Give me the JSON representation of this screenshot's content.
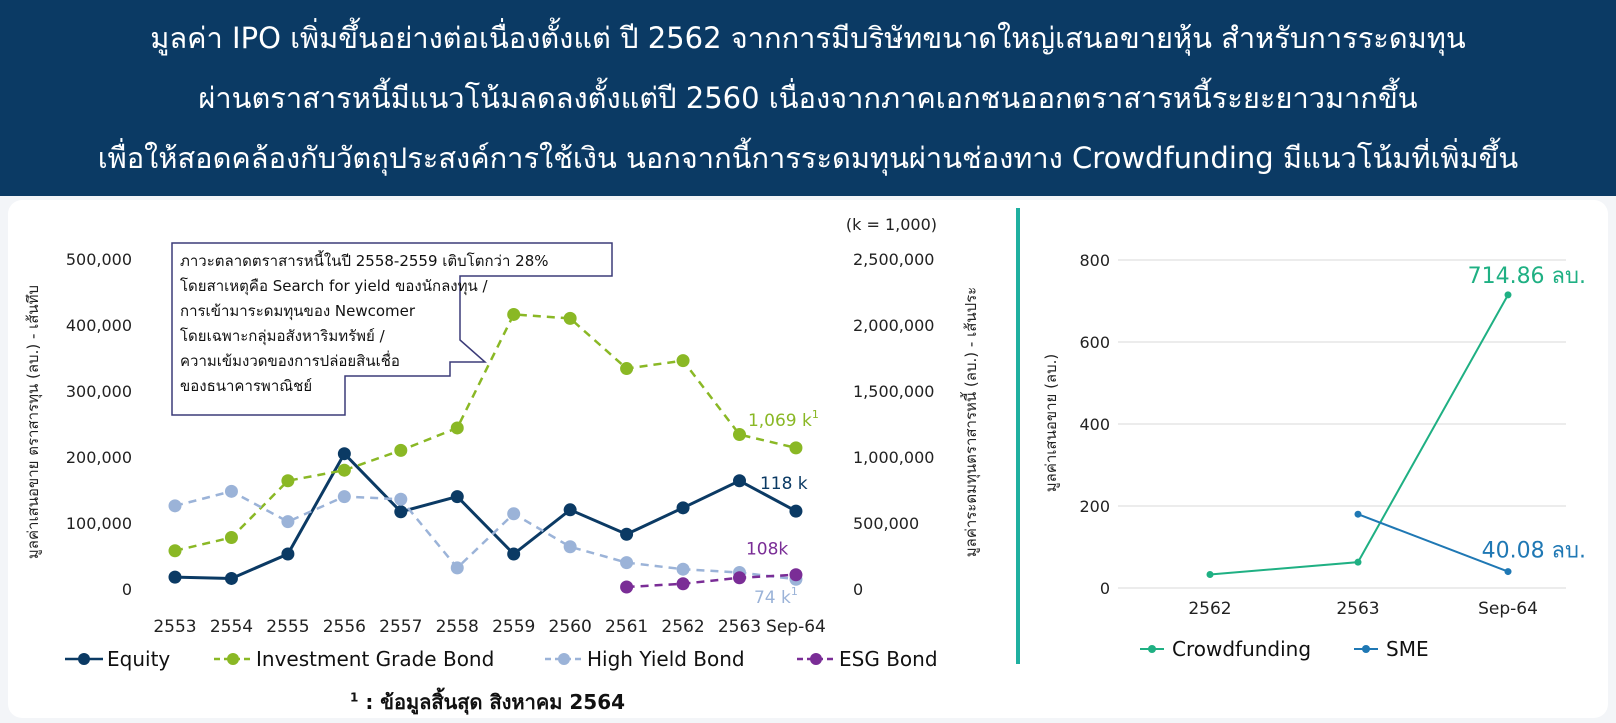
{
  "header": {
    "lines": [
      "มูลค่า IPO เพิ่มขึ้นอย่างต่อเนื่องตั้งแต่ ปี 2562 จากการมีบริษัทขนาดใหญ่เสนอขายหุ้น สำหรับการระดมทุน",
      "ผ่านตราสารหนี้มีแนวโน้มลดลงตั้งแต่ปี 2560 เนื่องจากภาคเอกชนออกตราสารหนี้ระยะยาวมากขึ้น",
      "เพื่อให้สอดคล้องกับวัตถุประสงค์การใช้เงิน นอกจากนี้การระดมทุนผ่านช่องทาง Crowdfunding มีแนวโน้มที่เพิ่มขึ้น"
    ]
  },
  "footnote": {
    "marker": "1",
    "text": " : ข้อมูลสิ้นสุด สิงหาคม 2564"
  },
  "chart_data": [
    {
      "type": "line",
      "ylabel": "มูลค่าเสนอขาย ตราสารทุน (ลบ.) - เส้นทึบ",
      "y2label": "มูลค่าระดมทุนตราสารหนี้ (ลบ.) - เส้นประ",
      "units_note": "(k = 1,000)",
      "ylim": [
        0,
        500000
      ],
      "y2lim": [
        0,
        2500000
      ],
      "yticks": [
        "0",
        "100,000",
        "200,000",
        "300,000",
        "400,000",
        "500,000"
      ],
      "y2ticks": [
        "",
        "500,000",
        "1,000,000",
        "1,500,000",
        "2,000,000",
        "2,500,000"
      ],
      "grid": false,
      "legend_position": "bottom",
      "categories": [
        "2553",
        "2554",
        "2555",
        "2556",
        "2557",
        "2558",
        "2559",
        "2560",
        "2561",
        "2562",
        "2563",
        "Sep-64"
      ],
      "series": [
        {
          "name": "Equity",
          "axis": "left",
          "style": "solid",
          "color": "#0b3a64",
          "values": [
            18000,
            16000,
            53000,
            205000,
            117000,
            140000,
            53000,
            120000,
            83000,
            123000,
            164000,
            118000
          ]
        },
        {
          "name": "Investment Grade Bond",
          "axis": "right",
          "style": "dashed",
          "color": "#8ab825",
          "values": [
            290000,
            390000,
            820000,
            900000,
            1050000,
            1220000,
            2080000,
            2050000,
            1670000,
            1730000,
            1170000,
            1069000
          ]
        },
        {
          "name": "High Yield Bond",
          "axis": "right",
          "style": "dashed",
          "color": "#9bb3d8",
          "values": [
            630000,
            740000,
            510000,
            700000,
            680000,
            160000,
            570000,
            320000,
            200000,
            150000,
            125000,
            74000
          ]
        },
        {
          "name": "ESG Bond",
          "axis": "right",
          "style": "dashed",
          "color": "#7a2d96",
          "values": [
            null,
            null,
            null,
            null,
            null,
            null,
            null,
            null,
            15000,
            40000,
            85000,
            108000
          ]
        }
      ],
      "annotation": {
        "lines": [
          "ภาวะตลาดตราสารหนี้ในปี 2558-2559 เติบโตกว่า 28%",
          "โดยสาเหตุคือ Search for yield ของนักลงทุน /",
          "การเข้ามาระดมทุนของ Newcomer",
          "โดยเฉพาะกลุ่มอสังหาริมทรัพย์ /",
          "ความเข้มงวดของการปล่อยสินเชื่อ",
          "ของธนาคารพาณิชย์"
        ]
      },
      "data_labels": [
        {
          "series": "Investment Grade Bond",
          "text": "1,069 k",
          "sup": "1"
        },
        {
          "series": "Equity",
          "text": "118 k",
          "sup": ""
        },
        {
          "series": "ESG Bond",
          "text": "108k",
          "sup": ""
        },
        {
          "series": "High Yield Bond",
          "text": "74 k",
          "sup": "1"
        }
      ]
    },
    {
      "type": "line",
      "ylabel": "มูลค่าเสนอขาย (ลบ.)",
      "ylim": [
        0,
        800
      ],
      "yticks": [
        "0",
        "200",
        "400",
        "600",
        "800"
      ],
      "grid": true,
      "legend_position": "bottom",
      "categories": [
        "2562",
        "2563",
        "Sep-64"
      ],
      "series": [
        {
          "name": "Crowdfunding",
          "color": "#1fb083",
          "values": [
            33,
            63,
            714.86
          ]
        },
        {
          "name": "SME",
          "color": "#1f78b4",
          "values": [
            null,
            180,
            40.08
          ]
        }
      ],
      "data_labels": [
        {
          "series": "Crowdfunding",
          "text": "714.86 ลบ."
        },
        {
          "series": "SME",
          "text": "40.08 ลบ."
        }
      ]
    }
  ]
}
